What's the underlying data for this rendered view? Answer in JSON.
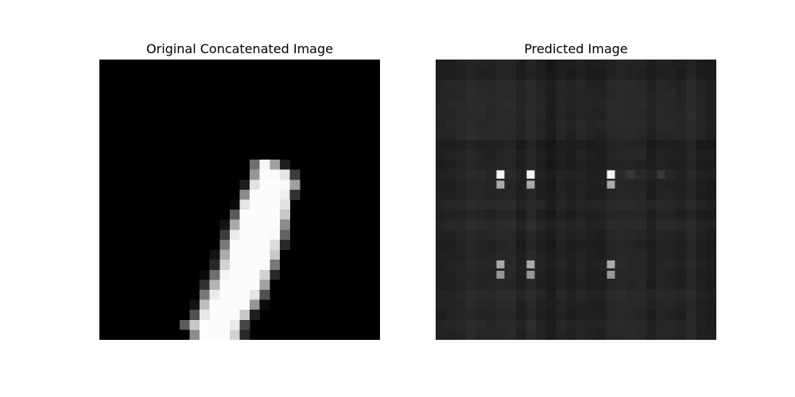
{
  "figure": {
    "left_title": "Original Concatenated Image",
    "right_title": "Predicted Image"
  },
  "colors": {
    "background": "#ffffff",
    "original_background": "#000000",
    "predicted_background": "#252525",
    "stroke_white": "#fafafa"
  },
  "image_grid": {
    "rows": 28,
    "cols": 28
  },
  "original_pixels": [
    [
      10,
      15,
      110
    ],
    [
      10,
      16,
      245
    ],
    [
      10,
      17,
      160
    ],
    [
      10,
      18,
      30
    ],
    [
      11,
      15,
      150
    ],
    [
      11,
      16,
      250
    ],
    [
      11,
      17,
      250
    ],
    [
      11,
      18,
      230
    ],
    [
      11,
      19,
      60
    ],
    [
      12,
      14,
      30
    ],
    [
      12,
      15,
      225
    ],
    [
      12,
      16,
      252
    ],
    [
      12,
      17,
      252
    ],
    [
      12,
      18,
      250
    ],
    [
      12,
      19,
      160
    ],
    [
      13,
      14,
      140
    ],
    [
      13,
      15,
      252
    ],
    [
      13,
      16,
      252
    ],
    [
      13,
      17,
      252
    ],
    [
      13,
      18,
      240
    ],
    [
      13,
      19,
      50
    ],
    [
      14,
      13,
      10
    ],
    [
      14,
      14,
      230
    ],
    [
      14,
      15,
      252
    ],
    [
      14,
      16,
      252
    ],
    [
      14,
      17,
      252
    ],
    [
      14,
      18,
      225
    ],
    [
      15,
      13,
      90
    ],
    [
      15,
      14,
      252
    ],
    [
      15,
      15,
      252
    ],
    [
      15,
      16,
      252
    ],
    [
      15,
      17,
      252
    ],
    [
      15,
      18,
      200
    ],
    [
      16,
      12,
      20
    ],
    [
      16,
      13,
      170
    ],
    [
      16,
      14,
      252
    ],
    [
      16,
      15,
      252
    ],
    [
      16,
      16,
      252
    ],
    [
      16,
      17,
      252
    ],
    [
      16,
      18,
      140
    ],
    [
      17,
      12,
      60
    ],
    [
      17,
      13,
      235
    ],
    [
      17,
      14,
      252
    ],
    [
      17,
      15,
      252
    ],
    [
      17,
      16,
      252
    ],
    [
      17,
      17,
      250
    ],
    [
      17,
      18,
      100
    ],
    [
      18,
      12,
      120
    ],
    [
      18,
      13,
      252
    ],
    [
      18,
      14,
      252
    ],
    [
      18,
      15,
      252
    ],
    [
      18,
      16,
      252
    ],
    [
      18,
      17,
      220
    ],
    [
      18,
      18,
      40
    ],
    [
      19,
      11,
      20
    ],
    [
      19,
      12,
      170
    ],
    [
      19,
      13,
      252
    ],
    [
      19,
      14,
      252
    ],
    [
      19,
      15,
      252
    ],
    [
      19,
      16,
      252
    ],
    [
      19,
      17,
      200
    ],
    [
      20,
      11,
      40
    ],
    [
      20,
      12,
      210
    ],
    [
      20,
      13,
      252
    ],
    [
      20,
      14,
      252
    ],
    [
      20,
      15,
      252
    ],
    [
      20,
      16,
      250
    ],
    [
      20,
      17,
      120
    ],
    [
      21,
      10,
      10
    ],
    [
      21,
      11,
      110
    ],
    [
      21,
      12,
      245
    ],
    [
      21,
      13,
      252
    ],
    [
      21,
      14,
      252
    ],
    [
      21,
      15,
      252
    ],
    [
      21,
      16,
      210
    ],
    [
      21,
      17,
      40
    ],
    [
      22,
      10,
      50
    ],
    [
      22,
      11,
      180
    ],
    [
      22,
      12,
      252
    ],
    [
      22,
      13,
      252
    ],
    [
      22,
      14,
      252
    ],
    [
      22,
      15,
      252
    ],
    [
      22,
      16,
      160
    ],
    [
      23,
      10,
      120
    ],
    [
      23,
      11,
      235
    ],
    [
      23,
      12,
      252
    ],
    [
      23,
      13,
      252
    ],
    [
      23,
      14,
      252
    ],
    [
      23,
      15,
      230
    ],
    [
      23,
      16,
      80
    ],
    [
      24,
      9,
      20
    ],
    [
      24,
      10,
      190
    ],
    [
      24,
      11,
      252
    ],
    [
      24,
      12,
      252
    ],
    [
      24,
      13,
      252
    ],
    [
      24,
      14,
      252
    ],
    [
      24,
      15,
      150
    ],
    [
      24,
      16,
      10
    ],
    [
      25,
      9,
      80
    ],
    [
      25,
      10,
      230
    ],
    [
      25,
      11,
      252
    ],
    [
      25,
      12,
      252
    ],
    [
      25,
      13,
      252
    ],
    [
      25,
      14,
      200
    ],
    [
      25,
      15,
      30
    ],
    [
      26,
      8,
      90
    ],
    [
      26,
      9,
      200
    ],
    [
      26,
      10,
      252
    ],
    [
      26,
      11,
      252
    ],
    [
      26,
      12,
      252
    ],
    [
      26,
      13,
      235
    ],
    [
      26,
      14,
      70
    ],
    [
      27,
      9,
      140
    ],
    [
      27,
      10,
      252
    ],
    [
      27,
      11,
      252
    ],
    [
      27,
      12,
      252
    ],
    [
      27,
      13,
      210
    ],
    [
      27,
      14,
      40
    ],
    [
      28,
      9,
      220
    ],
    [
      28,
      10,
      245
    ],
    [
      28,
      11,
      252
    ],
    [
      28,
      12,
      250
    ],
    [
      28,
      13,
      110
    ]
  ],
  "predicted_bright_pixels": [
    [
      11,
      6,
      245
    ],
    [
      11,
      9,
      245
    ],
    [
      11,
      17,
      245
    ],
    [
      12,
      6,
      170
    ],
    [
      12,
      9,
      170
    ],
    [
      12,
      17,
      170
    ],
    [
      11,
      19,
      55
    ],
    [
      11,
      22,
      55
    ],
    [
      20,
      6,
      170
    ],
    [
      20,
      9,
      170
    ],
    [
      20,
      17,
      170
    ],
    [
      21,
      6,
      150
    ],
    [
      21,
      9,
      150
    ],
    [
      21,
      17,
      150
    ]
  ]
}
